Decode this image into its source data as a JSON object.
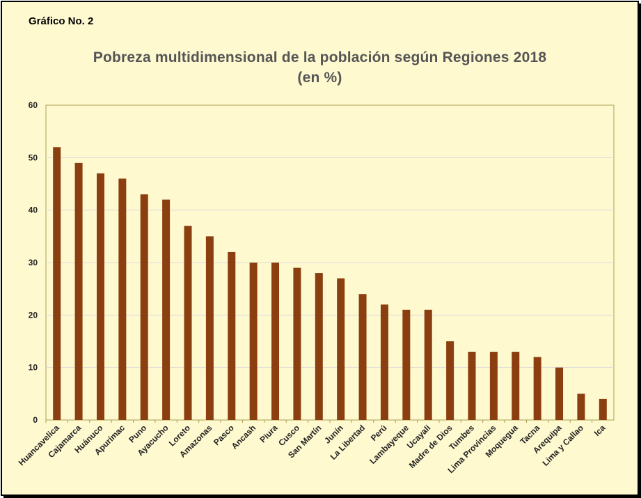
{
  "figure_label": "Gráfico No. 2",
  "colors": {
    "background": "#FFF9D0",
    "bar": "#8B3E0F",
    "gridline": "#D9D9D9",
    "title": "#555555"
  },
  "chart_data": {
    "type": "bar",
    "title": "Pobreza multidimensional  de la población según Regiones 2018",
    "subtitle": "(en %)",
    "xlabel": "",
    "ylabel": "",
    "ylim": [
      0,
      60
    ],
    "yticks": [
      0,
      10,
      20,
      30,
      40,
      50,
      60
    ],
    "grid": true,
    "legend": "none",
    "categories": [
      "Huancavelica",
      "Cajamarca",
      "Huánuco",
      "Apurímac",
      "Puno",
      "Ayacucho",
      "Loreto",
      "Amazonas",
      "Pasco",
      "Ancash",
      "Piura",
      "Cusco",
      "San Martín",
      "Junín",
      "La Libertad",
      "Perú",
      "Lambayeque",
      "Ucayali",
      "Madre de Dios",
      "Tumbes",
      "Lima Provincias",
      "Moquegua",
      "Tacna",
      "Arequipa",
      "Lima y Callao",
      "Ica"
    ],
    "values": [
      52,
      49,
      47,
      46,
      43,
      42,
      37,
      35,
      32,
      30,
      30,
      29,
      28,
      27,
      24,
      22,
      21,
      21,
      15,
      13,
      13,
      13,
      12,
      10,
      5,
      4
    ]
  }
}
